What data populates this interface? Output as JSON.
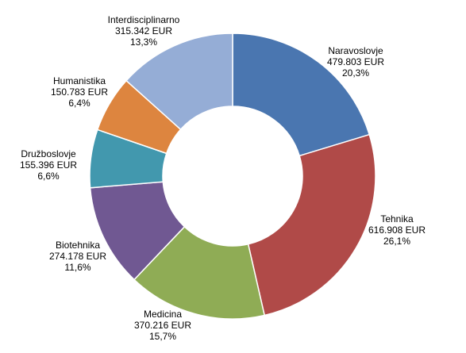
{
  "chart_data": {
    "type": "pie",
    "style": "donut",
    "categories": [
      "Naravoslovje",
      "Tehnika",
      "Medicina",
      "Biotehnika",
      "Družboslovje",
      "Humanistika",
      "Interdisciplinarno"
    ],
    "values": [
      479803,
      616908,
      370216,
      274178,
      155396,
      150783,
      315342
    ],
    "value_labels": [
      "479.803 EUR",
      "616.908 EUR",
      "370.216 EUR",
      "274.178 EUR",
      "155.396 EUR",
      "150.783 EUR",
      "315.342 EUR"
    ],
    "percent_labels": [
      "20,3%",
      "26,1%",
      "15,7%",
      "11,6%",
      "6,6%",
      "6,4%",
      "13,3%"
    ],
    "colors": [
      "#4a76b0",
      "#b04a48",
      "#8fac55",
      "#705892",
      "#4298ae",
      "#dd853f",
      "#95add6"
    ],
    "title": "",
    "legend": "none"
  }
}
